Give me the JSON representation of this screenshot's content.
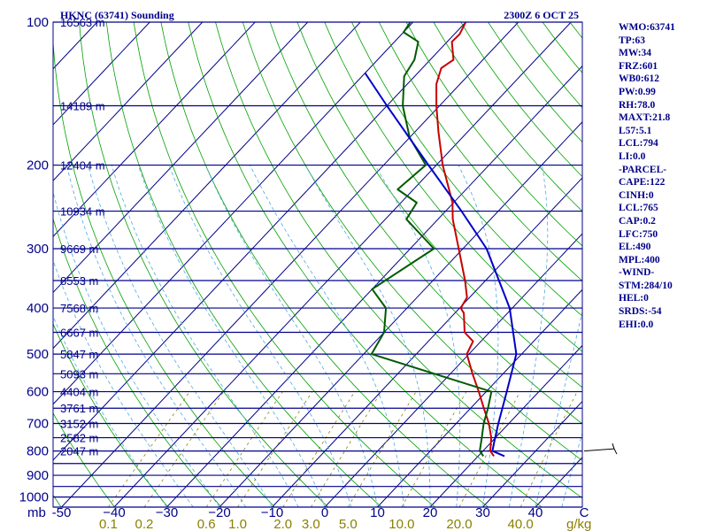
{
  "header": {
    "station": "HKNC (63741) Sounding",
    "time": "2300Z  6 OCT 25"
  },
  "panel_lines": [
    "WMO:63741",
    "TP:63",
    "MW:34",
    "FRZ:601",
    "WB0:612",
    "PW:0.99",
    "RH:78.0",
    "MAXT:21.8",
    "L57:5.1",
    "LCL:794",
    "LI:0.0",
    "-PARCEL-",
    "CAPE:122",
    "CINH:0",
    "LCL:765",
    "CAP:0.2",
    "LFC:750",
    "EL:490",
    "MPL:400",
    "-WIND-",
    "STM:284/10",
    "HEL:0",
    "SRDS:-54",
    "EHI:0.0"
  ],
  "axis": {
    "pressure_unit": "mb",
    "mixing_ratio_unit": "g/kg"
  },
  "colors": {
    "isobar": "#00008b",
    "isotherm": "#00008b",
    "dry_adiabat": "#00a000",
    "moist_adiabat": "#4fa8e0",
    "mixing_ratio": "#8b8000",
    "temperature": "#c80000",
    "dewpoint": "#005a00",
    "parcel": "#0000c8",
    "wind": "#000000"
  },
  "chart_data": {
    "type": "line",
    "title": "HKNC (63741) Sounding",
    "subtitle": "2300Z  6 OCT 25",
    "ylabel": "mb",
    "xlabel": "°C",
    "pressure_ticks": [
      100,
      200,
      300,
      400,
      500,
      600,
      700,
      800,
      900,
      1000
    ],
    "height_labels": [
      {
        "p": 100,
        "text": "16563 m"
      },
      {
        "p": 150,
        "text": "14189 m"
      },
      {
        "p": 200,
        "text": "12404 m"
      },
      {
        "p": 250,
        "text": "10934 m"
      },
      {
        "p": 300,
        "text": "9669 m"
      },
      {
        "p": 350,
        "text": "8553 m"
      },
      {
        "p": 400,
        "text": "7568 m"
      },
      {
        "p": 450,
        "text": "6667 m"
      },
      {
        "p": 500,
        "text": "5847 m"
      },
      {
        "p": 550,
        "text": "5093 m"
      },
      {
        "p": 600,
        "text": "4404 m"
      },
      {
        "p": 650,
        "text": "3761 m"
      },
      {
        "p": 700,
        "text": "3152 m"
      },
      {
        "p": 750,
        "text": "2582 m"
      },
      {
        "p": 800,
        "text": "2047 m"
      }
    ],
    "temperature_ticks": [
      -50,
      -40,
      -30,
      -20,
      -10,
      0,
      10,
      20,
      30,
      40
    ],
    "temperature_tick_labels": [
      "-50",
      "−40",
      "−30",
      "−20",
      "−10",
      "0",
      "10",
      "20",
      "30",
      "40"
    ],
    "corner_label": "C",
    "mixing_ratio_ticks": [
      0.1,
      0.2,
      0.6,
      1.0,
      2.0,
      3.0,
      5.0,
      10.0,
      20.0,
      40.0
    ],
    "mixing_ratio_labels": [
      "0.1",
      "0.2",
      "0.6",
      "1.0",
      "2.0",
      "3.0",
      "5.0",
      "10.0",
      "20.0",
      "40.0"
    ],
    "series": [
      {
        "name": "Temperature",
        "points": [
          [
            820,
            23.0
          ],
          [
            800,
            21.4
          ],
          [
            750,
            19.2
          ],
          [
            700,
            16.2
          ],
          [
            650,
            12.5
          ],
          [
            600,
            8.6
          ],
          [
            550,
            4.2
          ],
          [
            500,
            -0.4
          ],
          [
            470,
            -1.5
          ],
          [
            450,
            -4.7
          ],
          [
            410,
            -8.3
          ],
          [
            400,
            -9.8
          ],
          [
            380,
            -10.5
          ],
          [
            350,
            -13.9
          ],
          [
            300,
            -20.8
          ],
          [
            260,
            -27.2
          ],
          [
            240,
            -30.2
          ],
          [
            200,
            -38.8
          ],
          [
            170,
            -45.6
          ],
          [
            150,
            -50.6
          ],
          [
            135,
            -54.5
          ],
          [
            125,
            -56.4
          ],
          [
            120,
            -55.6
          ],
          [
            110,
            -59.1
          ],
          [
            106,
            -59.0
          ],
          [
            100,
            -60.0
          ]
        ]
      },
      {
        "name": "Dewpoint",
        "points": [
          [
            820,
            21.0
          ],
          [
            800,
            19.4
          ],
          [
            750,
            17.4
          ],
          [
            700,
            15.2
          ],
          [
            650,
            13.3
          ],
          [
            600,
            11.0
          ],
          [
            500,
            -18.5
          ],
          [
            450,
            -20.0
          ],
          [
            400,
            -24.0
          ],
          [
            365,
            -30.0
          ],
          [
            300,
            -25.5
          ],
          [
            260,
            -36.0
          ],
          [
            240,
            -37.0
          ],
          [
            225,
            -43.0
          ],
          [
            200,
            -42.0
          ],
          [
            175,
            -50.0
          ],
          [
            150,
            -57.0
          ],
          [
            130,
            -62.0
          ],
          [
            120,
            -63.0
          ],
          [
            110,
            -65.5
          ],
          [
            105,
            -70.0
          ],
          [
            100,
            -70.5
          ]
        ]
      },
      {
        "name": "Parcel",
        "points": [
          [
            820,
            25.0
          ],
          [
            800,
            21.8
          ],
          [
            765,
            20.5
          ],
          [
            700,
            18.0
          ],
          [
            600,
            13.9
          ],
          [
            500,
            9.0
          ],
          [
            400,
            -0.5
          ],
          [
            300,
            -15.5
          ],
          [
            250,
            -27.0
          ],
          [
            200,
            -41.5
          ],
          [
            150,
            -60.0
          ],
          [
            128,
            -70.0
          ]
        ]
      }
    ],
    "wind_barbs": [
      {
        "p": 800,
        "direction_deg": 284,
        "speed_kt": 10
      }
    ]
  }
}
